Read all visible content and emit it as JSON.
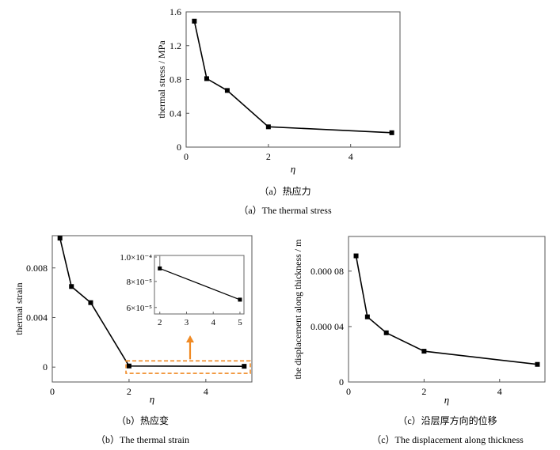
{
  "chart_data": [
    {
      "type": "line",
      "id": "a",
      "ylabel": "thermal stress / MPa",
      "xlabel": "η",
      "xlim": [
        0,
        5.2
      ],
      "ylim": [
        0,
        1.6
      ],
      "xticks": [
        0,
        2,
        4
      ],
      "xtick_labels": [
        "0",
        "2",
        "4"
      ],
      "yticks": [
        0,
        0.4,
        0.8,
        1.2,
        1.6
      ],
      "ytick_labels": [
        "0",
        "0.4",
        "0.8",
        "1.2",
        "1.6"
      ],
      "series": [
        {
          "x": [
            0.2,
            0.5,
            1,
            2,
            5
          ],
          "y": [
            1.49,
            0.81,
            0.67,
            0.24,
            0.17
          ]
        }
      ],
      "caption_cn": "（a）热应力",
      "caption_en": "（a）The thermal stress"
    },
    {
      "type": "line",
      "id": "b",
      "ylabel": "thermal strain",
      "xlabel": "η",
      "xlim": [
        0,
        5.2
      ],
      "ylim": [
        -0.0012,
        0.0106
      ],
      "xticks": [
        0,
        2,
        4
      ],
      "xtick_labels": [
        "0",
        "2",
        "4"
      ],
      "yticks": [
        0,
        0.004,
        0.008
      ],
      "ytick_labels": [
        "0",
        "0.004",
        "0.008"
      ],
      "series": [
        {
          "x": [
            0.2,
            0.5,
            1,
            2,
            5
          ],
          "y": [
            0.0104,
            0.0065,
            0.0052,
            9e-05,
            6.6e-05
          ]
        }
      ],
      "inset": {
        "xlim": [
          1.8,
          5.15
        ],
        "ylim": [
          5.5e-05,
          0.0001
        ],
        "xticks": [
          2,
          3,
          4,
          5
        ],
        "xtick_labels": [
          "2",
          "3",
          "4",
          "5"
        ],
        "ytick_labels": [
          "1.0×10⁻⁴",
          "8×10⁻⁵",
          "6×10⁻⁵"
        ],
        "yticks": [
          0.0001,
          8e-05,
          6e-05
        ],
        "series": [
          {
            "x": [
              2,
              5
            ],
            "y": [
              9e-05,
              6.6e-05
            ]
          }
        ]
      },
      "caption_cn": "（b）热应变",
      "caption_en": "（b）The thermal strain"
    },
    {
      "type": "line",
      "id": "c",
      "ylabel": "the displacement along thickness / m",
      "xlabel": "η",
      "xlim": [
        0,
        5.2
      ],
      "ylim": [
        0,
        0.000105
      ],
      "xticks": [
        0,
        2,
        4
      ],
      "xtick_labels": [
        "0",
        "2",
        "4"
      ],
      "yticks": [
        0,
        4e-05,
        8e-05
      ],
      "ytick_labels": [
        "0",
        "0.000 04",
        "0.000 08"
      ],
      "series": [
        {
          "x": [
            0.2,
            0.5,
            1,
            2,
            5
          ],
          "y": [
            9.1e-05,
            4.7e-05,
            3.55e-05,
            2.22e-05,
            1.27e-05
          ]
        }
      ],
      "caption_cn": "（c）沿层厚方向的位移",
      "caption_en": "（c）The displacement along thickness"
    }
  ],
  "colors": {
    "line": "#000000",
    "highlight": "#f08a24"
  }
}
